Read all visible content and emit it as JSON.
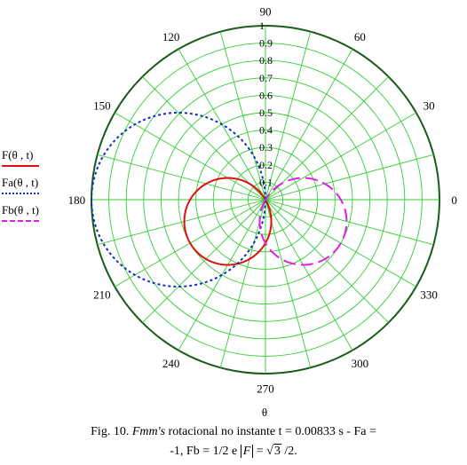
{
  "chart_data": {
    "type": "polar-line",
    "angle_unit": "degrees",
    "angle_ticks": [
      "0",
      "30",
      "60",
      "90",
      "120",
      "150",
      "180",
      "210",
      "240",
      "270",
      "300",
      "330"
    ],
    "radial_ticks": [
      "0.1",
      "0.2",
      "0.3",
      "0.4",
      "0.5",
      "0.6",
      "0.7",
      "0.8",
      "0.9",
      "1"
    ],
    "rlim": [
      0,
      1
    ],
    "theta_label": "θ",
    "grid": true,
    "legend_position": "left",
    "colors": {
      "grid": "#33cc33",
      "outer_circle": "#1a5c1a"
    },
    "series": [
      {
        "name": "F(θ , t)",
        "style": "solid",
        "color": "#e01010",
        "peak_r": 0.5,
        "peak_angle_deg": 210,
        "theta_deg": [
          120,
          135,
          150,
          165,
          180,
          195,
          210,
          225,
          240,
          255,
          270,
          285,
          300
        ],
        "r": [
          0.0,
          0.25,
          0.43,
          0.48,
          0.45,
          0.49,
          0.5,
          0.49,
          0.45,
          0.37,
          0.25,
          0.13,
          0.0
        ]
      },
      {
        "name": "Fa(θ , t)",
        "style": "dotted",
        "color": "#1030c0",
        "peak_r": 1.0,
        "peak_angle_deg": 180,
        "theta_deg": [
          90,
          105,
          120,
          135,
          150,
          165,
          180,
          195,
          210,
          225,
          240,
          255,
          270
        ],
        "r": [
          0.0,
          0.26,
          0.5,
          0.71,
          0.87,
          0.97,
          1.0,
          0.97,
          0.87,
          0.71,
          0.5,
          0.26,
          0.0
        ]
      },
      {
        "name": "Fb(θ , t)",
        "style": "dashed",
        "color": "#e020e0",
        "peak_r": 0.5,
        "peak_angle_deg": 330,
        "theta_deg": [
          240,
          255,
          270,
          285,
          300,
          315,
          330,
          345,
          0,
          15,
          30
        ],
        "r": [
          0.0,
          0.13,
          0.25,
          0.35,
          0.43,
          0.48,
          0.5,
          0.48,
          0.43,
          0.35,
          0.25
        ]
      }
    ]
  },
  "legend": {
    "items": [
      {
        "label": "F(θ , t)"
      },
      {
        "label": "Fa(θ , t)"
      },
      {
        "label": "Fb(θ , t)"
      }
    ]
  },
  "caption": {
    "line1_prefix": "Fig. 10.",
    "line1_italic": "Fmm's",
    "line1_rest": "rotacional no instante t = 0.00833 s - Fa =",
    "line2_prefix": "-1, Fb = 1/2 e",
    "abs_symbol": "F",
    "eq": "=",
    "sqrt_arg": "3",
    "line2_suffix": "/2."
  }
}
